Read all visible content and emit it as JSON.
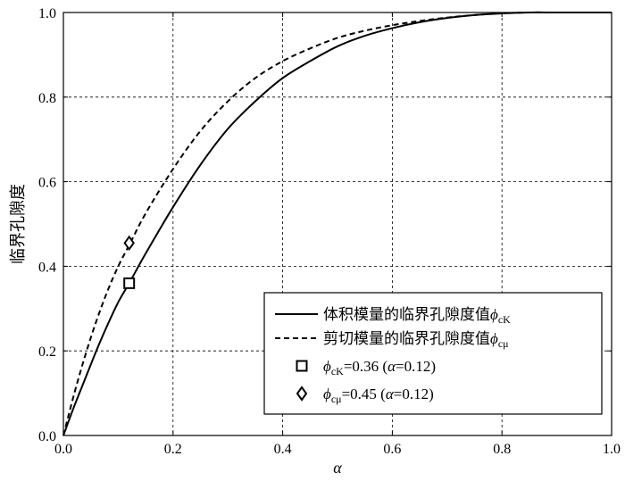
{
  "chart_data": {
    "type": "line",
    "xlabel": "α",
    "ylabel": "临界孔隙度",
    "xlim": [
      0,
      1
    ],
    "ylim": [
      0,
      1
    ],
    "xticks": [
      "0.0",
      "0.2",
      "0.4",
      "0.6",
      "0.8",
      "1.0"
    ],
    "yticks": [
      "0.0",
      "0.2",
      "0.4",
      "0.6",
      "0.8",
      "1.0"
    ],
    "grid": true,
    "legend_position": "bottom-right",
    "x": [
      0,
      0.02,
      0.04,
      0.06,
      0.08,
      0.1,
      0.12,
      0.15,
      0.2,
      0.25,
      0.3,
      0.35,
      0.4,
      0.45,
      0.5,
      0.55,
      0.6,
      0.65,
      0.7,
      0.75,
      0.8,
      0.85,
      0.9,
      0.95,
      1.0
    ],
    "series": [
      {
        "legend_prefix": "体积模量的临界孔隙度值",
        "legend_sub": "cK",
        "style": "solid",
        "values": [
          0,
          0.07,
          0.135,
          0.2,
          0.26,
          0.315,
          0.36,
          0.43,
          0.54,
          0.64,
          0.725,
          0.79,
          0.845,
          0.885,
          0.92,
          0.945,
          0.963,
          0.977,
          0.987,
          0.994,
          0.998,
          1.0,
          1.0,
          1.0,
          1.0
        ]
      },
      {
        "legend_prefix": "剪切模量的临界孔隙度值",
        "legend_sub": "cμ",
        "style": "dashed",
        "values": [
          0,
          0.1,
          0.19,
          0.27,
          0.34,
          0.4,
          0.45,
          0.525,
          0.63,
          0.72,
          0.79,
          0.845,
          0.885,
          0.915,
          0.94,
          0.957,
          0.97,
          0.98,
          0.988,
          0.994,
          0.998,
          1.0,
          1.0,
          1.0,
          1.0
        ]
      }
    ],
    "markers": [
      {
        "shape": "square",
        "x": 0.12,
        "y": 0.36,
        "sub": "cK",
        "label": "=0.36 (",
        "alpha": "α",
        "label_tail": "=0.12)"
      },
      {
        "shape": "diamond",
        "x": 0.12,
        "y": 0.455,
        "sub": "cμ",
        "label": "=0.45 (",
        "alpha": "α",
        "label_tail": "=0.12)"
      }
    ],
    "phi": "ϕ"
  }
}
